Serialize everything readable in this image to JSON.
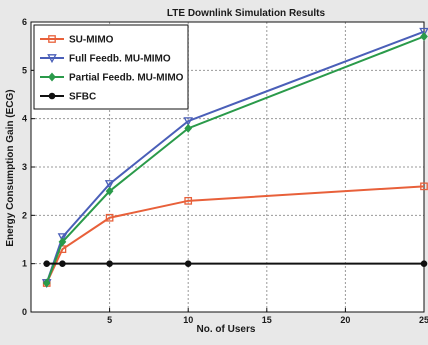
{
  "chart_data": {
    "type": "line",
    "title": "LTE Downlink Simulation Results",
    "xlabel": "No. of Users",
    "ylabel": "Energy Consumption Gain (ECG)",
    "xlim": [
      0,
      25
    ],
    "ylim": [
      0,
      6
    ],
    "xticks": [
      5,
      10,
      15,
      20,
      25
    ],
    "yticks": [
      0,
      1,
      2,
      3,
      4,
      5,
      6
    ],
    "grid": true,
    "legend_position": "top-left",
    "series": [
      {
        "name": "SU-MIMO",
        "color": "#e8603a",
        "marker": "square",
        "x": [
          1,
          2,
          5,
          10,
          25
        ],
        "y": [
          0.6,
          1.3,
          1.95,
          2.3,
          2.6
        ]
      },
      {
        "name": "Full Feedb. MU-MIMO",
        "color": "#4a5fb8",
        "marker": "triangle-down",
        "x": [
          1,
          2,
          5,
          10,
          25
        ],
        "y": [
          0.6,
          1.55,
          2.65,
          3.95,
          5.8
        ]
      },
      {
        "name": "Partial Feedb. MU-MIMO",
        "color": "#2a9a4a",
        "marker": "diamond",
        "x": [
          1,
          2,
          5,
          10,
          25
        ],
        "y": [
          0.6,
          1.45,
          2.5,
          3.8,
          5.7
        ]
      },
      {
        "name": "SFBC",
        "color": "#111111",
        "marker": "circle",
        "x": [
          1,
          2,
          5,
          10,
          25
        ],
        "y": [
          1,
          1,
          1,
          1,
          1
        ]
      }
    ]
  }
}
